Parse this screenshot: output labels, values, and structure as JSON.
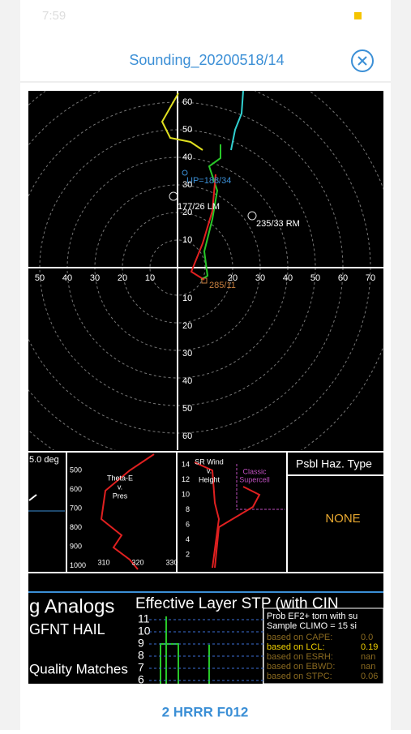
{
  "status_bar": {
    "time": "7:59"
  },
  "header": {
    "title": "Sounding_20200518/14"
  },
  "hodograph": {
    "ring_labels_up": [
      60,
      50,
      40,
      30,
      20,
      10
    ],
    "ring_labels_down": [
      10,
      20,
      30,
      40,
      50,
      60
    ],
    "ring_labels_left": [
      50,
      40,
      30,
      20,
      10
    ],
    "ring_labels_right": [
      20,
      30,
      40,
      50,
      60,
      70
    ],
    "upshear": "UP=188/34",
    "left_mover": "177/26 LM",
    "right_mover": "235/33 RM",
    "mean_wind": "285/11"
  },
  "panels": {
    "angle": "5.0 deg",
    "pressure_labels": [
      500,
      600,
      700,
      800,
      900,
      1000
    ],
    "theta_title": [
      "Theta-E",
      "v.",
      "Pres"
    ],
    "theta_labels": [
      310,
      320,
      330
    ],
    "sr_title": [
      "SR Wind",
      "v.",
      "Height"
    ],
    "height_labels": [
      14,
      12,
      10,
      8,
      6,
      4,
      2
    ],
    "supercell": [
      "Classic",
      "Supercell"
    ],
    "hazard_title": "Psbl Haz. Type",
    "hazard": "NONE"
  },
  "bottom": {
    "analogs": "g Analogs",
    "hail": "GFNT HAIL",
    "quality": "Quality Matches",
    "stp_title": "Effective Layer STP (with CIN",
    "stp_labels": [
      11,
      10,
      9,
      8,
      7,
      6
    ],
    "prob_lines": [
      "Prob EF2+ torn with su",
      "Sample CLIMO =  15 si"
    ],
    "based_on": [
      {
        "label": "based on CAPE:",
        "value": "0.0"
      },
      {
        "label": "based on LCL:",
        "value": "0.19"
      },
      {
        "label": "based on ESRH:",
        "value": "nan"
      },
      {
        "label": "based on EBWD:",
        "value": "nan"
      },
      {
        "label": "based on STPC:",
        "value": "0.06"
      }
    ]
  },
  "footer": {
    "label": "2 HRRR F012"
  }
}
